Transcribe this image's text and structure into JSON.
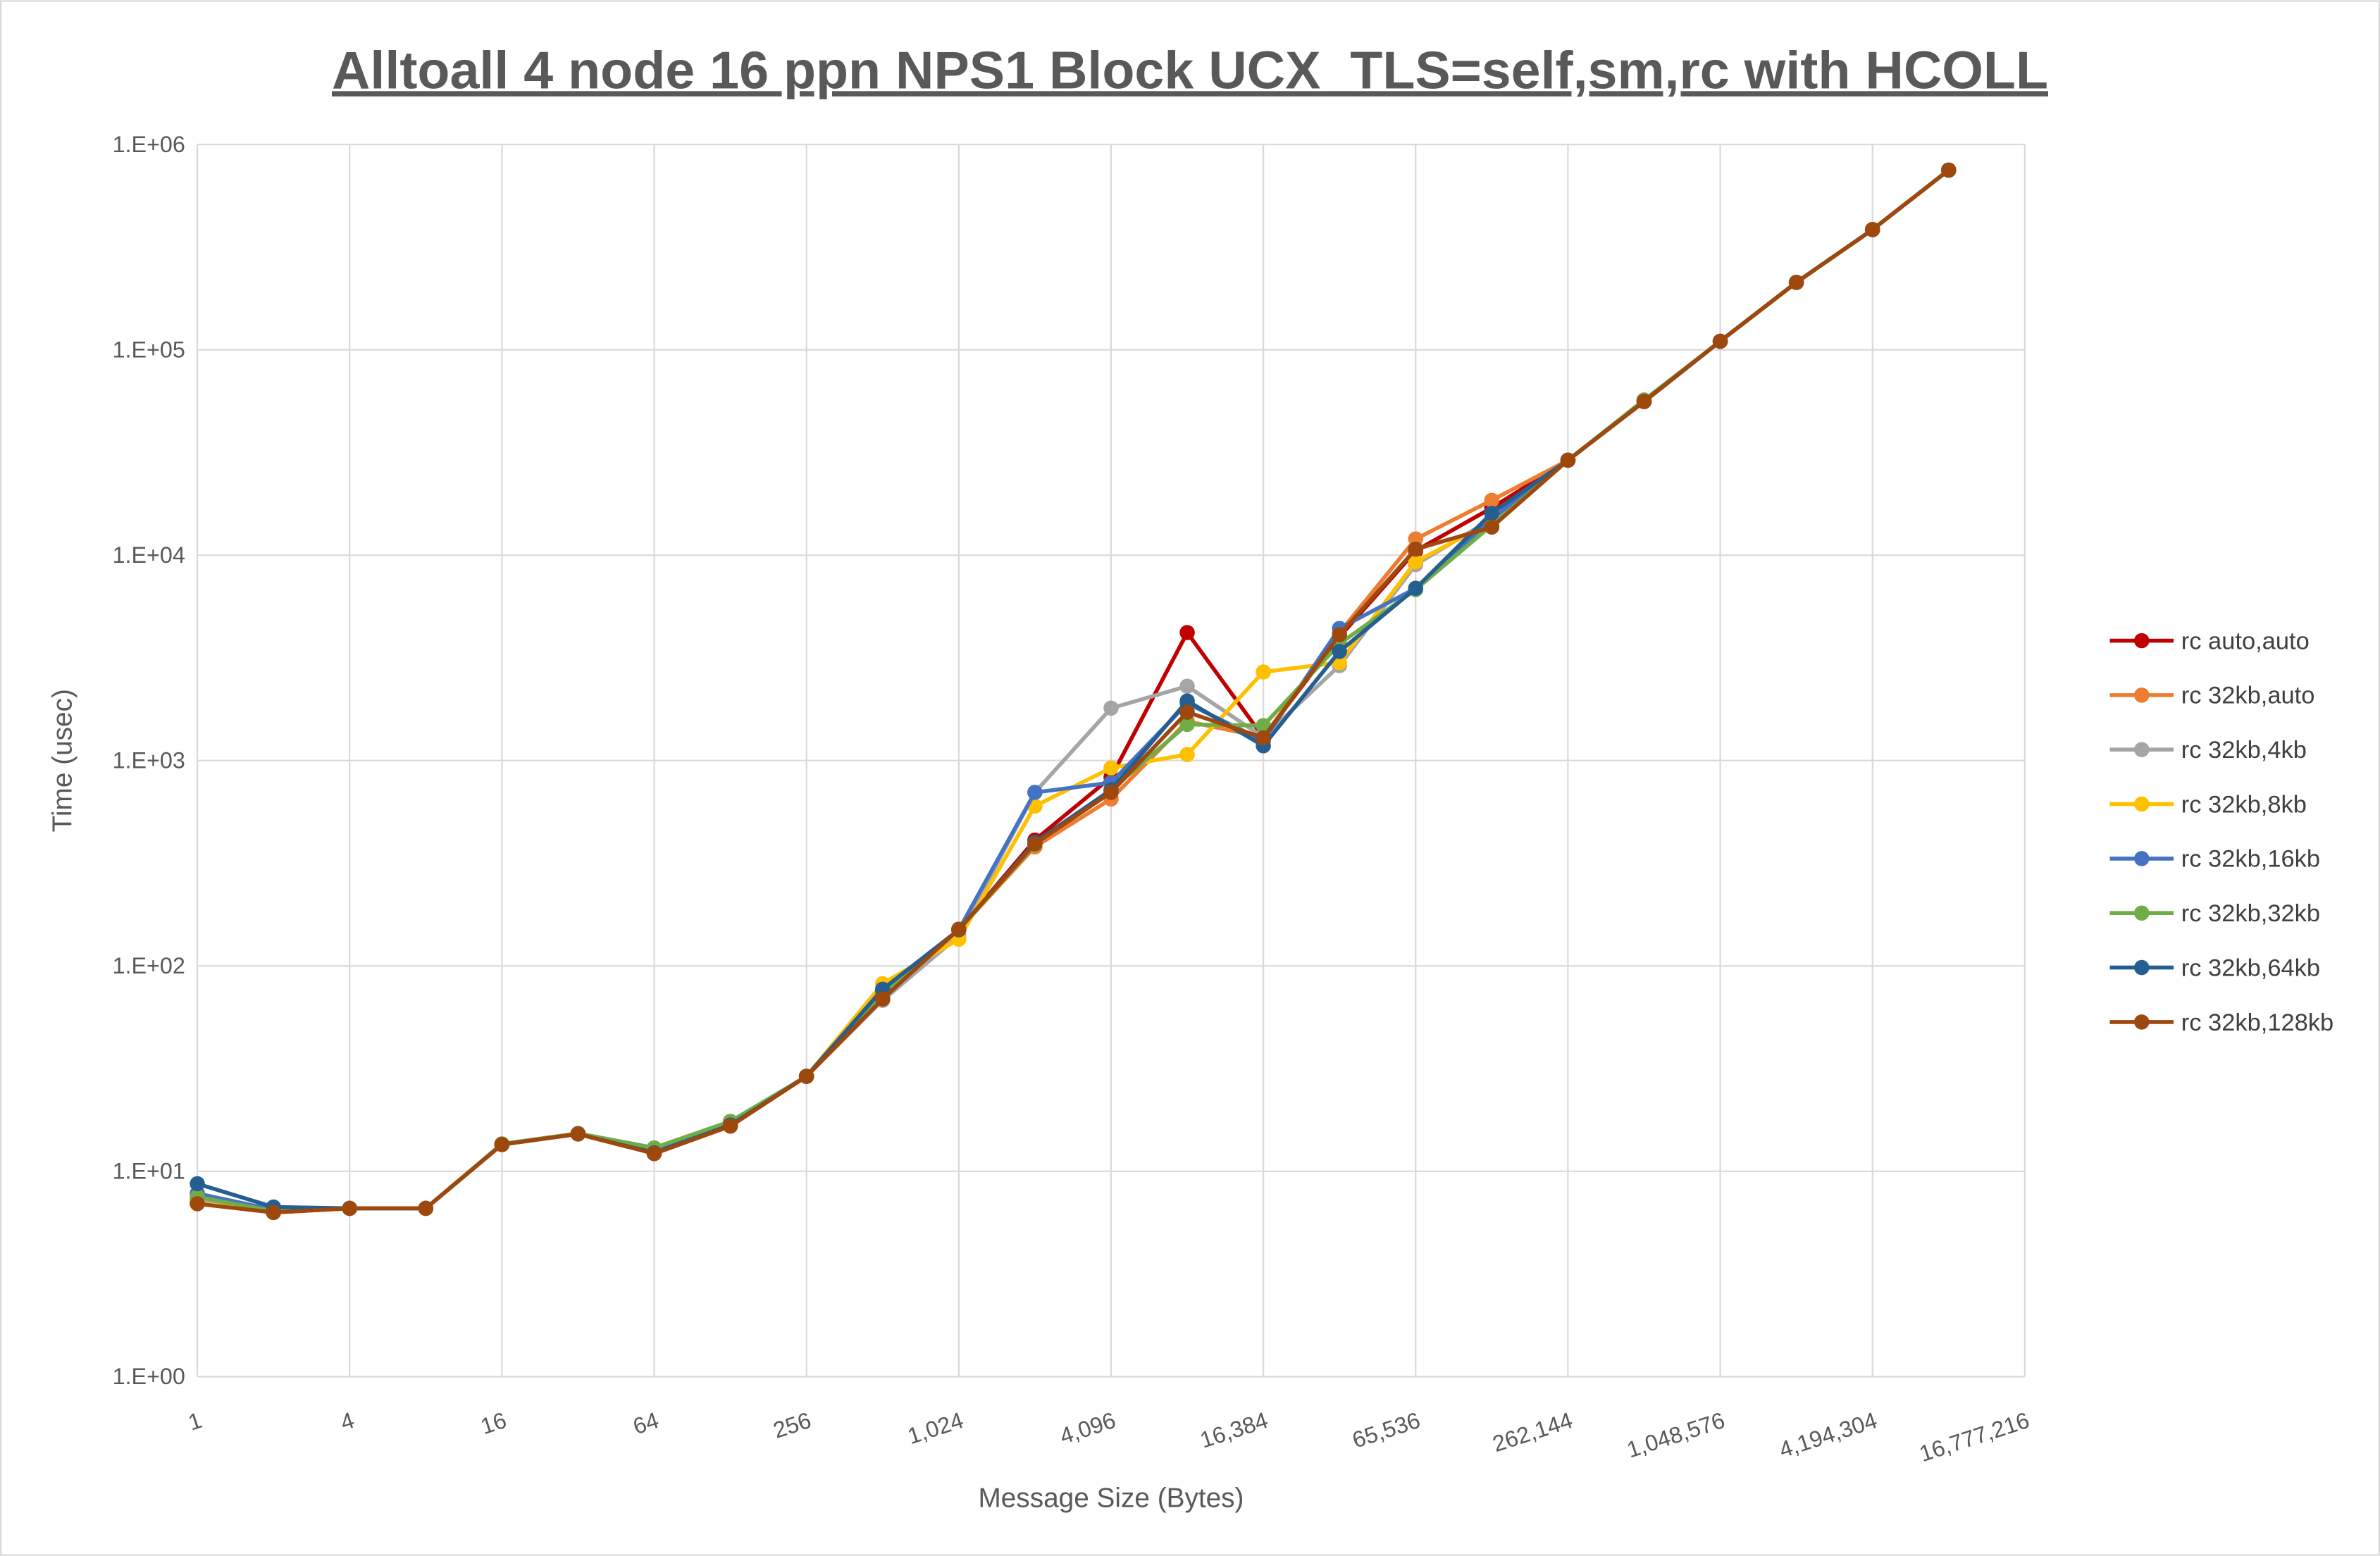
{
  "chart_data": {
    "type": "line",
    "title": "Alltoall 4 node 16 ppn NPS1 Block UCX_TLS=self,sm,rc with HCOLL",
    "xlabel": "Message Size (Bytes)",
    "ylabel": "Time (usec)",
    "x_scale": "log2",
    "y_scale": "log10",
    "xlim": [
      1,
      16777216
    ],
    "ylim": [
      1,
      1000000
    ],
    "grid": true,
    "legend_position": "right",
    "x_tick_labels": [
      "1",
      "4",
      "16",
      "64",
      "256",
      "1,024",
      "4,096",
      "16,384",
      "65,536",
      "262,144",
      "1,048,576",
      "4,194,304",
      "16,777,216"
    ],
    "y_tick_labels": [
      "1.E+00",
      "1.E+01",
      "1.E+02",
      "1.E+03",
      "1.E+04",
      "1.E+05",
      "1.E+06"
    ],
    "x": [
      1,
      2,
      4,
      8,
      16,
      32,
      64,
      128,
      256,
      512,
      1024,
      2048,
      4096,
      8192,
      16384,
      32768,
      65536,
      131072,
      262144,
      524288,
      1048576,
      2097152,
      4194304,
      8388608
    ],
    "series": [
      {
        "name": "rc auto,auto",
        "color": "#C00000",
        "values": [
          7.0,
          6.3,
          6.6,
          6.6,
          13.5,
          15.2,
          12.2,
          16.6,
          29,
          70,
          150,
          410,
          830,
          4200,
          1300,
          4000,
          10500,
          17000,
          29000,
          56000,
          110000,
          213000,
          385000,
          750000
        ]
      },
      {
        "name": "rc 32kb,auto",
        "color": "#ED7D31",
        "values": [
          7.0,
          6.3,
          6.6,
          6.6,
          13.5,
          15.2,
          12.2,
          16.6,
          29,
          69,
          150,
          380,
          650,
          1550,
          1300,
          4200,
          12000,
          18500,
          29000,
          56000,
          110000,
          213000,
          385000,
          750000
        ]
      },
      {
        "name": "rc 32kb,4kb",
        "color": "#A5A5A5",
        "values": [
          7.2,
          6.4,
          6.6,
          6.6,
          13.5,
          15.2,
          12.4,
          16.8,
          29,
          68,
          140,
          700,
          1800,
          2300,
          1300,
          2900,
          9000,
          15000,
          29000,
          56000,
          110000,
          213000,
          385000,
          750000
        ]
      },
      {
        "name": "rc 32kb,8kb",
        "color": "#FFC000",
        "values": [
          7.0,
          6.3,
          6.6,
          6.6,
          13.5,
          15.2,
          12.3,
          16.8,
          29,
          82,
          135,
          600,
          920,
          1070,
          2700,
          3000,
          9300,
          14500,
          29000,
          56000,
          110000,
          213000,
          385000,
          750000
        ]
      },
      {
        "name": "rc 32kb,16kb",
        "color": "#4472C4",
        "values": [
          7.8,
          6.5,
          6.6,
          6.6,
          13.5,
          15.2,
          12.4,
          17.0,
          29,
          75,
          150,
          700,
          780,
          1900,
          1250,
          4400,
          6900,
          15000,
          29000,
          56000,
          110000,
          213000,
          385000,
          750000
        ]
      },
      {
        "name": "rc 32kb,32kb",
        "color": "#70AD47",
        "values": [
          7.5,
          6.4,
          6.6,
          6.6,
          13.6,
          15.3,
          13.0,
          17.5,
          29,
          72,
          150,
          390,
          720,
          1500,
          1480,
          3700,
          6800,
          14000,
          29000,
          57000,
          110000,
          213000,
          385000,
          750000
        ]
      },
      {
        "name": "rc 32kb,64kb",
        "color": "#255E91",
        "values": [
          8.7,
          6.7,
          6.6,
          6.6,
          13.5,
          15.2,
          12.3,
          16.8,
          29,
          77,
          150,
          400,
          720,
          1950,
          1180,
          3400,
          6900,
          16000,
          29000,
          56000,
          110000,
          213000,
          385000,
          750000
        ]
      },
      {
        "name": "rc 32kb,128kb",
        "color": "#9E480E",
        "values": [
          6.95,
          6.3,
          6.6,
          6.6,
          13.5,
          15.2,
          12.2,
          16.6,
          29,
          69,
          151,
          393,
          700,
          1720,
          1290,
          4100,
          10700,
          13700,
          29000,
          56000,
          110000,
          213000,
          385000,
          750000
        ]
      }
    ]
  }
}
